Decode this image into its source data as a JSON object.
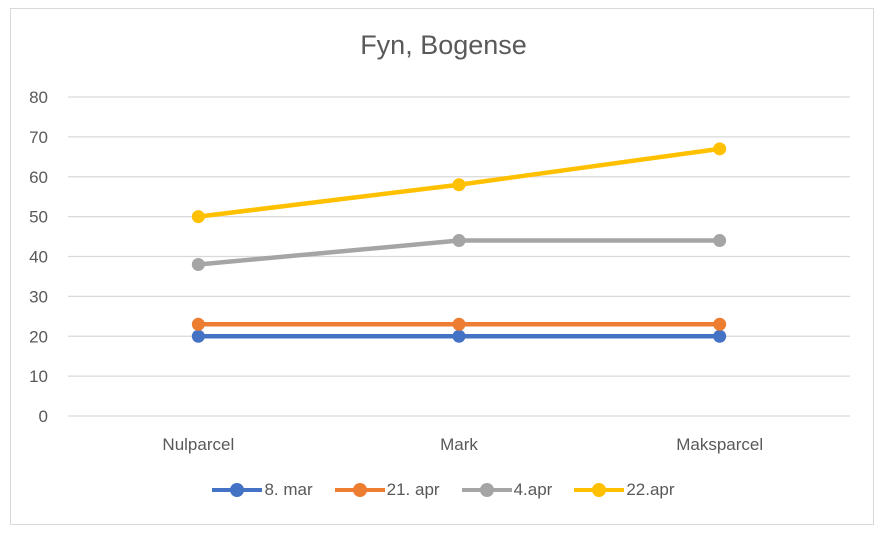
{
  "chart_data": {
    "type": "line",
    "title": "Fyn, Bogense",
    "categories": [
      "Nulparcel",
      "Mark",
      "Maksparcel"
    ],
    "series": [
      {
        "name": "8. mar",
        "color": "#4472C4",
        "values": [
          20,
          20,
          20
        ]
      },
      {
        "name": "21. apr",
        "color": "#ED7D31",
        "values": [
          23,
          23,
          23
        ]
      },
      {
        "name": "4.apr",
        "color": "#A5A5A5",
        "values": [
          38,
          44,
          44
        ]
      },
      {
        "name": "22.apr",
        "color": "#FFC000",
        "values": [
          50,
          58,
          67
        ]
      }
    ],
    "xlabel": "",
    "ylabel": "",
    "ylim": [
      0,
      80
    ],
    "yticks": [
      0,
      10,
      20,
      30,
      40,
      50,
      60,
      70,
      80
    ],
    "grid": true,
    "legend_position": "bottom"
  }
}
